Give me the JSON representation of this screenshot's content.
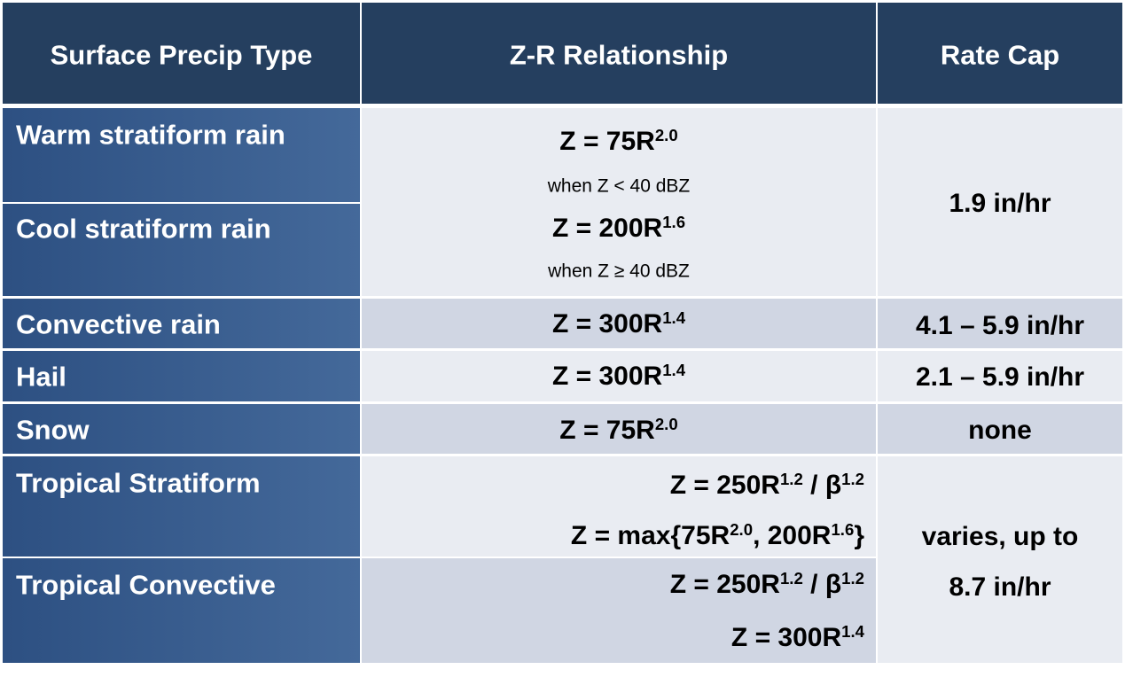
{
  "table": {
    "header": [
      "Surface Precip Type",
      "Z-R Relationship",
      "Rate Cap"
    ],
    "types": [
      "Warm stratiform rain",
      "Cool stratiform rain",
      "Convective rain",
      "Hail",
      "Snow",
      "Tropical Stratiform",
      "Tropical Convective"
    ],
    "relationships": [
      {
        "lines": [
          [
            "Z = 75R",
            "2.0"
          ]
        ],
        "note": "when Z < 40 dBZ"
      },
      {
        "lines": [
          [
            "Z = 200R",
            "1.6"
          ]
        ],
        "note": "when Z ≥ 40 dBZ"
      },
      {
        "lines": [
          [
            "Z = 300R",
            "1.4"
          ]
        ]
      },
      {
        "lines": [
          [
            "Z = 300R",
            "1.4"
          ]
        ]
      },
      {
        "lines": [
          [
            "Z = 75R",
            "2.0"
          ]
        ]
      },
      {
        "lines": [
          [
            "Z = 250R",
            "1.2",
            " / β",
            "1.2"
          ],
          [
            "Z = max{75R",
            "2.0",
            ", 200R",
            "1.6",
            "}"
          ]
        ]
      },
      {
        "lines": [
          [
            "Z = 250R",
            "1.2",
            " / β",
            "1.2"
          ],
          [
            "Z = 300R",
            "1.4"
          ]
        ]
      }
    ],
    "rate_caps": [
      "1.9 in/hr",
      "4.1 – 5.9 in/hr",
      "2.1 – 5.9 in/hr",
      "none",
      [
        "varies, up to",
        "8.7 in/hr"
      ]
    ]
  }
}
